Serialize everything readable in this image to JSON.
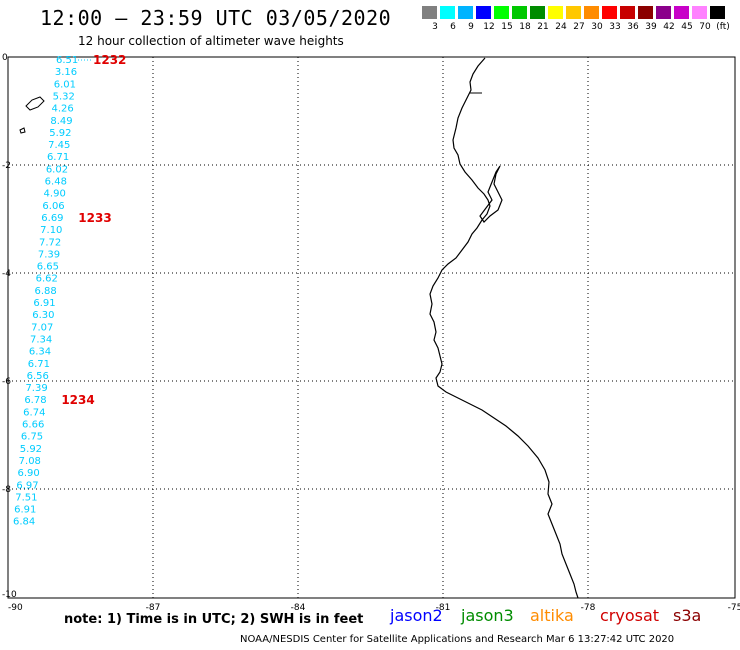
{
  "header": {
    "title": "12:00 – 23:59 UTC 03/05/2020",
    "subtitle": "12 hour collection of altimeter wave heights"
  },
  "colorbar": {
    "colors": [
      "#808080",
      "#00ffff",
      "#00b4ff",
      "#0000ff",
      "#00ff00",
      "#00c800",
      "#008c00",
      "#ffff00",
      "#ffc800",
      "#ff8c00",
      "#ff0000",
      "#c80000",
      "#8b0000",
      "#8b008b",
      "#c800c8",
      "#ff82ff",
      "#000000"
    ],
    "labels": [
      "3",
      "6",
      "9",
      "12",
      "15",
      "18",
      "21",
      "24",
      "27",
      "30",
      "33",
      "36",
      "39",
      "42",
      "45",
      "70",
      "(ft)"
    ]
  },
  "map": {
    "lat_ticks": [
      "0",
      "-2",
      "-4",
      "-6",
      "-8",
      "-10"
    ],
    "lon_ticks": [
      "-90",
      "-87",
      "-84",
      "-81",
      "-78",
      "-75"
    ],
    "track": {
      "color": "#00ccff",
      "values": [
        "6.51",
        "3.16",
        "6.01",
        "5.32",
        "4.26",
        "8.49",
        "5.92",
        "7.45",
        "6.71",
        "6.02",
        "6.48",
        "4.90",
        "6.06",
        "6.69",
        "7.10",
        "7.72",
        "7.39",
        "6.65",
        "6.62",
        "6.88",
        "6.91",
        "6.30",
        "7.07",
        "7.34",
        "6.34",
        "6.71",
        "6.56",
        "7.39",
        "6.78",
        "6.74",
        "6.66",
        "6.75",
        "5.92",
        "7.08",
        "6.90",
        "6.97",
        "7.51",
        "6.91",
        "6.84"
      ]
    },
    "time_labels": [
      {
        "text": "1232",
        "row": 0
      },
      {
        "text": "1233",
        "row": 13
      },
      {
        "text": "1234",
        "row": 28
      }
    ],
    "time_color": "#e00000"
  },
  "footer": {
    "note": "note:  1) Time is in UTC;  2) SWH is in feet",
    "satellites": [
      {
        "name": "jason2",
        "color": "#0000ff"
      },
      {
        "name": "jason3",
        "color": "#008c00"
      },
      {
        "name": "altika",
        "color": "#ff8c00"
      },
      {
        "name": "cryosat",
        "color": "#d00000"
      },
      {
        "name": "s3a",
        "color": "#8b0000"
      }
    ],
    "credit": "NOAA/NESDIS Center for Satellite Applications and Research   Mar  6 13:27:42 UTC 2020"
  }
}
